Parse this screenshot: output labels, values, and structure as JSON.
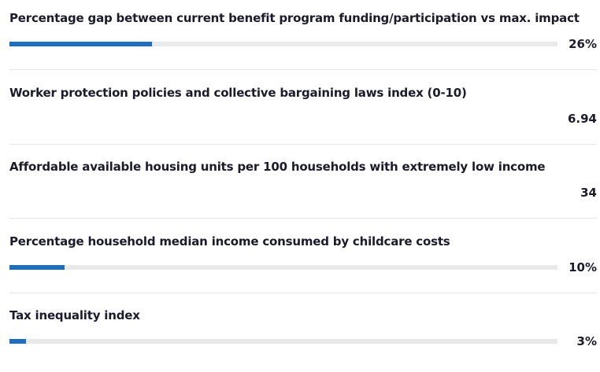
{
  "items": [
    {
      "label": "Percentage gap between current benefit program funding/participation vs max. impact",
      "value": 26,
      "value_label": "26%",
      "bar": true,
      "xlim": [
        0,
        100
      ],
      "color": "#1f6fc1"
    },
    {
      "label": "Worker protection policies and collective bargaining laws index (0-10)",
      "value": 6.94,
      "bar": false
    },
    {
      "label": "Affordable available housing units per 100 households with extremely low income",
      "value": 34,
      "bar": false
    },
    {
      "label": "Percentage household median income consumed by childcare costs",
      "value": 10,
      "value_label": "10%",
      "bar": true,
      "xlim": [
        0,
        100
      ],
      "color": "#1f6fc1"
    },
    {
      "label": "Tax inequality index",
      "value": 3,
      "value_label": "3%",
      "bar": true,
      "xlim": [
        0,
        100
      ],
      "color": "#1f6fc1"
    }
  ]
}
